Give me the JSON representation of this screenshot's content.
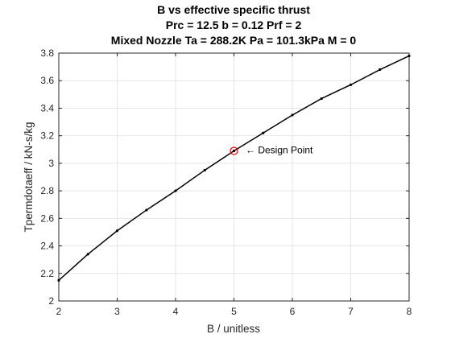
{
  "chart_data": {
    "type": "line",
    "title": [
      "B vs effective specific thrust",
      "Prc = 12.5 b = 0.12 Prf = 2",
      "Mixed Nozzle Ta = 288.2K Pa = 101.3kPa M = 0"
    ],
    "xlabel": "B / unitless",
    "ylabel": "Tpermdotaeff / kN-s/kg",
    "xlim": [
      2,
      8
    ],
    "ylim": [
      2,
      3.8
    ],
    "xticks": [
      "2",
      "3",
      "4",
      "5",
      "6",
      "7",
      "8"
    ],
    "yticks": [
      "2",
      "2.2",
      "2.4",
      "2.6",
      "2.8",
      "3",
      "3.2",
      "3.4",
      "3.6",
      "3.8"
    ],
    "grid": true,
    "series": [
      {
        "x": [
          2.0,
          2.5,
          3.0,
          3.5,
          4.0,
          4.5,
          5.0,
          5.5,
          6.0,
          6.5,
          7.0,
          7.5,
          8.0
        ],
        "y": [
          2.15,
          2.34,
          2.51,
          2.66,
          2.8,
          2.95,
          3.09,
          3.22,
          3.35,
          3.47,
          3.57,
          3.68,
          3.78
        ],
        "color": "#000000",
        "marker": "dot"
      }
    ],
    "design_point": {
      "x": 5.0,
      "y": 3.09,
      "color": "#e00000",
      "marker": "circle"
    },
    "annotations": [
      {
        "text": "← Design Point",
        "x": 5.2,
        "y": 3.09
      }
    ]
  }
}
